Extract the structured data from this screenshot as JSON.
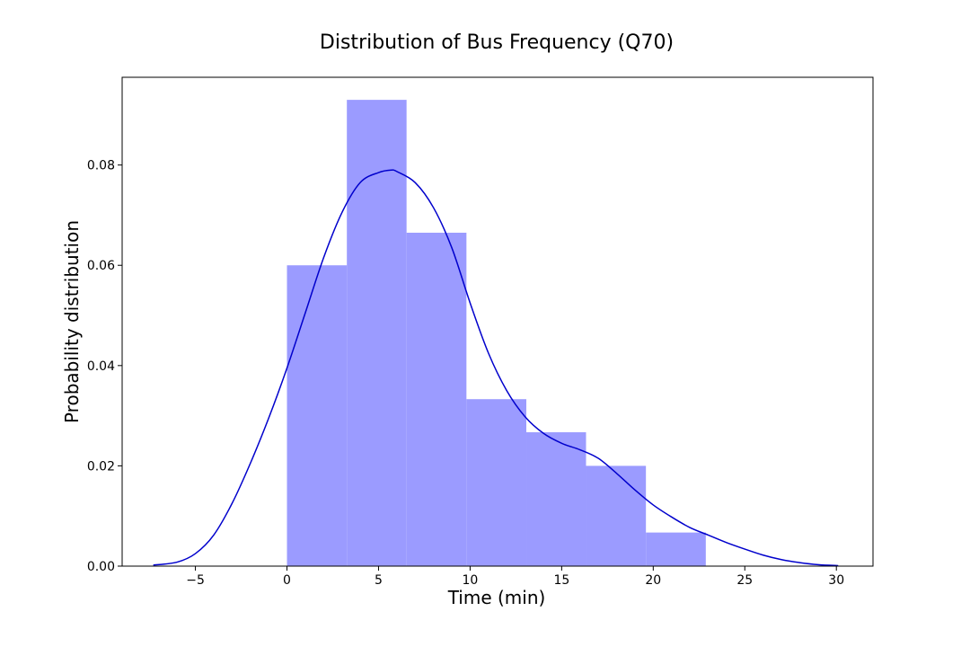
{
  "chart_data": {
    "type": "histogram",
    "title": "Distribution of Bus Frequency (Q70)",
    "xlabel": "Time (min)",
    "ylabel": "Probability distribution",
    "xlim": [
      -9,
      32
    ],
    "ylim": [
      0,
      0.0975
    ],
    "x_ticks": [
      -5,
      0,
      5,
      10,
      15,
      20,
      25,
      30
    ],
    "x_tick_labels": [
      "−5",
      "0",
      "5",
      "10",
      "15",
      "20",
      "25",
      "30"
    ],
    "y_ticks": [
      0,
      0.02,
      0.04,
      0.06,
      0.08
    ],
    "y_tick_labels": [
      "0.00",
      "0.02",
      "0.04",
      "0.06",
      "0.08"
    ],
    "grid": false,
    "legend": "none",
    "bar_color": "#9b9bff",
    "line_color": "#0000cc",
    "bins": [
      {
        "x0": 0.0,
        "x1": 3.27,
        "density": 0.06
      },
      {
        "x0": 3.27,
        "x1": 6.53,
        "density": 0.093
      },
      {
        "x0": 6.53,
        "x1": 9.8,
        "density": 0.0665
      },
      {
        "x0": 9.8,
        "x1": 13.07,
        "density": 0.0333
      },
      {
        "x0": 13.07,
        "x1": 16.33,
        "density": 0.0267
      },
      {
        "x0": 16.33,
        "x1": 19.6,
        "density": 0.02
      },
      {
        "x0": 19.6,
        "x1": 22.87,
        "density": 0.0067
      }
    ],
    "kde": {
      "x": [
        -7.3,
        -6,
        -5,
        -4,
        -3,
        -2,
        -1,
        0,
        1,
        2,
        3,
        4,
        5,
        5.7,
        6,
        7,
        8,
        9,
        10,
        11,
        12,
        13,
        14,
        15,
        16,
        17,
        18,
        19,
        20,
        21,
        22,
        23,
        24,
        25,
        26,
        27,
        28,
        29,
        30.1
      ],
      "y": [
        0.0002,
        0.0008,
        0.0025,
        0.0062,
        0.0125,
        0.0205,
        0.0295,
        0.0395,
        0.0505,
        0.0615,
        0.0705,
        0.0765,
        0.0785,
        0.079,
        0.0787,
        0.0765,
        0.0715,
        0.0635,
        0.0525,
        0.0425,
        0.035,
        0.0298,
        0.0265,
        0.0245,
        0.0232,
        0.0215,
        0.0185,
        0.0152,
        0.0122,
        0.0098,
        0.0077,
        0.0062,
        0.0047,
        0.0034,
        0.0022,
        0.0013,
        0.0007,
        0.0003,
        0.0001
      ]
    }
  }
}
